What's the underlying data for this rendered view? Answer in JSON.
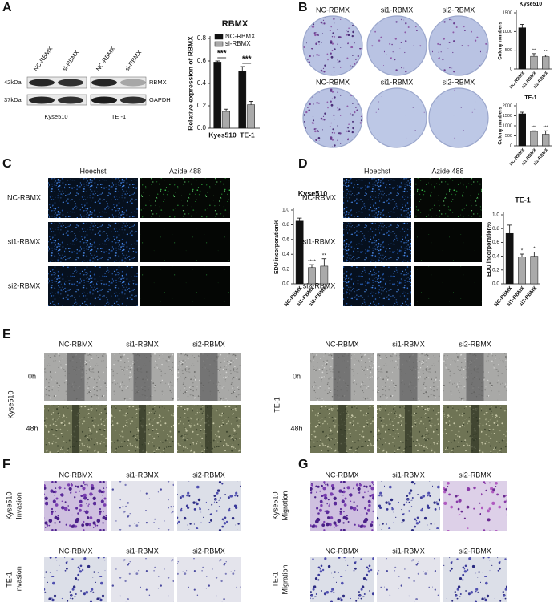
{
  "figure": {
    "panel_letters": [
      "A",
      "B",
      "C",
      "D",
      "E",
      "F",
      "G"
    ],
    "blot": {
      "lanes": [
        "NC-RBMX",
        "si-RBMX",
        "NC-RBMX",
        "si-RBMX"
      ],
      "markers": [
        "42kDa",
        "37kDa"
      ],
      "proteins": [
        "RBMX",
        "GAPDH"
      ],
      "cell_lines": [
        "Kyse510",
        "TE -1"
      ]
    },
    "colony_rows": [
      [
        "NC-RBMX",
        "si1-RBMX",
        "si2-RBMX"
      ],
      [
        "NC-RBMX",
        "si1-RBMX",
        "si2-RBMX"
      ]
    ],
    "edu": [
      {
        "columns": [
          "Hoechst",
          "Azide 488"
        ],
        "rows": [
          "NC-RBMX",
          "si1-RBMX",
          "si2-RBMX"
        ]
      },
      {
        "columns": [
          "Hoechst",
          "Azide 488"
        ],
        "rows": [
          "NC-RBMX",
          "si1-RBMX",
          "si2-RBMX"
        ]
      }
    ],
    "wound": [
      {
        "columns": [
          "NC-RBMX",
          "si1-RBMX",
          "si2-RBMX"
        ],
        "times": [
          "0h",
          "48h"
        ],
        "cell_line": "Kyse510"
      },
      {
        "columns": [
          "NC-RBMX",
          "si1-RBMX",
          "si2-RBMX"
        ],
        "times": [
          "0h",
          "48h"
        ],
        "cell_line": "TE-1"
      }
    ],
    "transwell": [
      {
        "blocks": [
          {
            "columns": [
              "NC-RBMX",
              "si1-RBMX",
              "si2-RBMX"
            ],
            "cell_line": "Kyse510",
            "assay": "Invasion"
          },
          {
            "columns": [
              "NC-RBMX",
              "si1-RBMX",
              "si2-RBMX"
            ],
            "cell_line": "TE-1",
            "assay": "Invasion"
          }
        ]
      },
      {
        "blocks": [
          {
            "columns": [
              "NC-RBMX",
              "si1-RBMX",
              "si2-RBMX"
            ],
            "cell_line": "Kyse510",
            "assay": "Migration"
          },
          {
            "columns": [
              "NC-RBMX",
              "si1-RBMX",
              "si2-RBMX"
            ],
            "cell_line": "TE-1",
            "assay": "Migration"
          }
        ]
      }
    ]
  },
  "chart_data": [
    {
      "type": "bar",
      "title": "RBMX",
      "y_label": "Relative expression of RBMX",
      "categories": [
        "Kyes510",
        "TE-1"
      ],
      "series": [
        {
          "name": "NC-RBMX",
          "color": "#111111",
          "values": [
            0.59,
            0.51
          ],
          "errors": [
            0.01,
            0.04
          ]
        },
        {
          "name": "si-RBMX",
          "color": "#aaaaaa",
          "values": [
            0.15,
            0.21
          ],
          "errors": [
            0.02,
            0.03
          ]
        }
      ],
      "ylim": [
        0,
        0.8
      ],
      "yticks": [
        {
          "value": 0,
          "label": "0.0"
        },
        0.2,
        0.4,
        0.6,
        0.8
      ],
      "annotations": [
        "***",
        "***"
      ]
    },
    {
      "type": "bar",
      "title": "Kyse510",
      "y_label": "Colony numbers",
      "categories": [
        "NC-RBMX",
        "si1-RBMX",
        "si2-RBMX"
      ],
      "values": [
        1100,
        340,
        330
      ],
      "errors": [
        90,
        70,
        40
      ],
      "colors": [
        "#111111",
        "#aaaaaa",
        "#aaaaaa"
      ],
      "ylim": [
        0,
        1500
      ],
      "yticks": [
        0,
        500,
        1000,
        1500
      ],
      "annotations": [
        null,
        "**",
        "**"
      ]
    },
    {
      "type": "bar",
      "title": "TE-1",
      "y_label": "Colony numbers",
      "categories": [
        "NC-RBMX",
        "si1-RBMX",
        "si2-RBMX"
      ],
      "values": [
        1600,
        720,
        580
      ],
      "errors": [
        80,
        30,
        170
      ],
      "colors": [
        "#111111",
        "#aaaaaa",
        "#aaaaaa"
      ],
      "ylim": [
        0,
        2000
      ],
      "yticks": [
        0,
        500,
        1000,
        1500,
        2000
      ],
      "annotations": [
        null,
        "***",
        "***"
      ]
    },
    {
      "type": "bar",
      "title": "Kyse510",
      "y_label": "EDU incorporation%",
      "categories": [
        "NC-RBMX",
        "si1-RBMX",
        "si2-RBMX"
      ],
      "values": [
        0.85,
        0.22,
        0.24
      ],
      "errors": [
        0.04,
        0.04,
        0.1
      ],
      "colors": [
        "#111111",
        "#aaaaaa",
        "#aaaaaa"
      ],
      "ylim": [
        0,
        1
      ],
      "yticks": [
        {
          "value": 0,
          "label": "0.0"
        },
        0.2,
        0.4,
        0.6,
        0.8,
        {
          "value": 1,
          "label": "1.0"
        }
      ],
      "annotations": [
        null,
        "****",
        "**"
      ]
    },
    {
      "type": "bar",
      "title": "TE-1",
      "y_label": "EDU incorporation%",
      "categories": [
        "NC-RBMX",
        "si1-RBMX",
        "si2-RBMX"
      ],
      "values": [
        0.73,
        0.39,
        0.4
      ],
      "errors": [
        0.12,
        0.04,
        0.06
      ],
      "colors": [
        "#111111",
        "#aaaaaa",
        "#aaaaaa"
      ],
      "ylim": [
        0,
        1
      ],
      "yticks": [
        {
          "value": 0,
          "label": "0.0"
        },
        0.2,
        0.4,
        0.6,
        0.8,
        {
          "value": 1,
          "label": "1.0"
        }
      ],
      "annotations": [
        null,
        "*",
        "*"
      ]
    }
  ]
}
